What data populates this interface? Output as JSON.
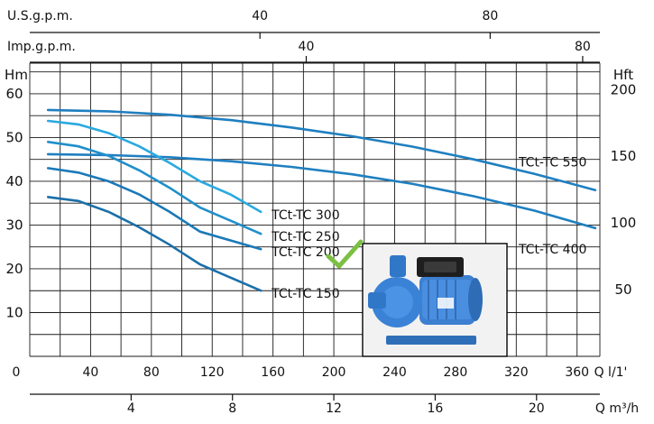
{
  "chart_data": {
    "type": "line",
    "title": "",
    "axes": {
      "x_primary": {
        "label": "Q l/1'",
        "ticks": [
          "0",
          "40",
          "80",
          "120",
          "160",
          "200",
          "240",
          "280",
          "320",
          "360"
        ],
        "range": [
          0,
          375
        ]
      },
      "x_m3h": {
        "label": "Q m³/h",
        "ticks": [
          "4",
          "8",
          "12",
          "16",
          "20"
        ]
      },
      "x_usgpm": {
        "label": "U.S.g.p.m.",
        "ticks": [
          "40",
          "80"
        ]
      },
      "x_impgpm": {
        "label": "Imp.g.p.m.",
        "ticks": [
          "40",
          "80"
        ]
      },
      "y_left": {
        "label": "Hm",
        "ticks": [
          "10",
          "20",
          "30",
          "40",
          "50",
          "60"
        ],
        "range": [
          0,
          67
        ]
      },
      "y_right": {
        "label": "Hft",
        "ticks": [
          "50",
          "100",
          "150",
          "200"
        ]
      }
    },
    "grid": true,
    "series": [
      {
        "name": "TCt-TC 550",
        "color": "#1f7fc0",
        "x": [
          0,
          40,
          80,
          120,
          160,
          200,
          240,
          280,
          320,
          360
        ],
        "y": [
          56.3,
          56.0,
          55.2,
          54.0,
          52.3,
          50.3,
          47.9,
          45.0,
          41.7,
          38.0
        ]
      },
      {
        "name": "TCt-TC 400",
        "color": "#1f7fc0",
        "x": [
          0,
          40,
          80,
          120,
          160,
          200,
          240,
          280,
          320,
          360
        ],
        "y": [
          46.2,
          46.0,
          45.5,
          44.6,
          43.3,
          41.6,
          39.4,
          36.6,
          33.3,
          29.3
        ]
      },
      {
        "name": "TCt-TC 300",
        "color": "#29a9e0",
        "x": [
          0,
          20,
          40,
          60,
          80,
          100,
          120,
          140
        ],
        "y": [
          53.8,
          53.0,
          51.0,
          48.0,
          44.2,
          40.0,
          37.0,
          33.0
        ]
      },
      {
        "name": "TCt-TC 250",
        "color": "#1f8fcb",
        "x": [
          0,
          20,
          40,
          60,
          80,
          100,
          120,
          140
        ],
        "y": [
          49.0,
          48.0,
          45.8,
          42.5,
          38.5,
          34.0,
          31.0,
          28.0
        ]
      },
      {
        "name": "TCt-TC 200",
        "color": "#1a79b8",
        "x": [
          0,
          20,
          40,
          60,
          80,
          100,
          120,
          140
        ],
        "y": [
          43.0,
          42.0,
          40.0,
          37.0,
          33.0,
          28.5,
          26.5,
          24.5
        ]
      },
      {
        "name": "TCt-TC 150",
        "color": "#1a6fa9",
        "x": [
          0,
          20,
          40,
          60,
          80,
          100,
          120,
          140
        ],
        "y": [
          36.4,
          35.5,
          33.0,
          29.5,
          25.5,
          21.0,
          18.0,
          15.0
        ]
      }
    ]
  },
  "photo": {
    "name": "pump-photo"
  },
  "checkmark": {
    "color": "#7cc043"
  }
}
